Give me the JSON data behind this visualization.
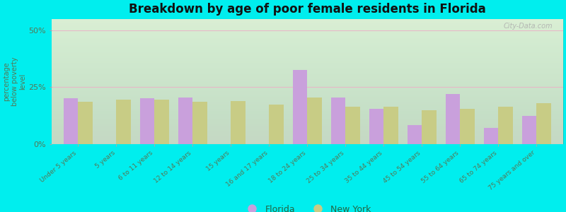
{
  "title": "Breakdown by age of poor female residents in Florida",
  "categories": [
    "Under 5 years",
    "5 years",
    "6 to 11 years",
    "12 to 14 years",
    "15 years",
    "16 and 17 years",
    "18 to 24 years",
    "25 to 34 years",
    "35 to 44 years",
    "45 to 54 years",
    "55 to 64 years",
    "65 to 74 years",
    "75 years and over"
  ],
  "florida_values": [
    20.0,
    0.0,
    20.0,
    20.5,
    0.0,
    0.0,
    32.5,
    20.5,
    15.5,
    8.5,
    22.0,
    7.0,
    12.5
  ],
  "newyork_values": [
    18.5,
    19.5,
    19.5,
    18.5,
    19.0,
    17.5,
    20.5,
    16.5,
    16.5,
    15.0,
    15.5,
    16.5,
    18.0
  ],
  "florida_color": "#c9a0dc",
  "newyork_color": "#c8cc85",
  "background_outer": "#00eeee",
  "background_plot_top": "#ffffff",
  "background_plot_bottom": "#d4eac8",
  "ylabel": "percentage\nbelow poverty\nlevel",
  "yticks": [
    0,
    25,
    50
  ],
  "ylim": [
    0,
    55
  ],
  "bar_width": 0.38,
  "watermark": "City-Data.com",
  "legend_florida": "Florida",
  "legend_newyork": "New York",
  "grid_color": "#e8b8c8",
  "tick_label_color": "#557755",
  "title_color": "#111111"
}
